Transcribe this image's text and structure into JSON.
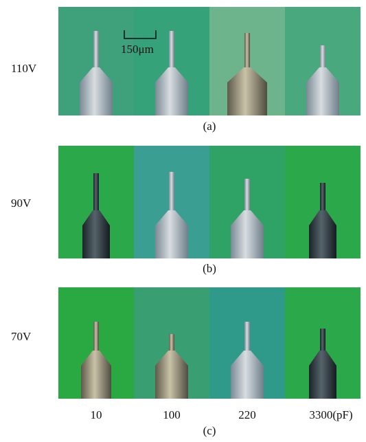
{
  "rows": [
    {
      "label": "110V",
      "caption": "(a)"
    },
    {
      "label": "90V",
      "caption": "(b)"
    },
    {
      "label": "70V",
      "caption": "(c)"
    }
  ],
  "scale_bar": "150μm",
  "capacitances": [
    "10",
    "100",
    "220",
    "3300(pF)"
  ]
}
